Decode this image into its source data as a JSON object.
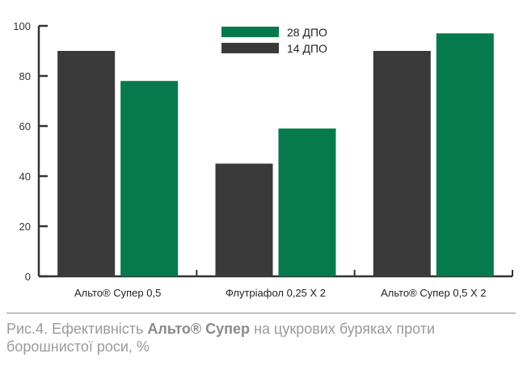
{
  "chart_data": {
    "type": "bar",
    "categories": [
      "Альто® Супер 0,5",
      "Флутріафол 0,25 Х 2",
      "Альто® Супер 0,5 Х 2"
    ],
    "series": [
      {
        "name": "14 ДПО",
        "values": [
          90,
          45,
          90
        ],
        "color": "#3a3a3a"
      },
      {
        "name": "28 ДПО",
        "values": [
          78,
          59,
          97
        ],
        "color": "#067a4c"
      }
    ],
    "legend_order": [
      "28 ДПО",
      "14 ДПО"
    ],
    "legend_position": "top-center",
    "ylim": [
      0,
      100
    ],
    "yticks": [
      0,
      20,
      40,
      60,
      80,
      100
    ],
    "xlabel": "",
    "ylabel": "",
    "title": ""
  },
  "caption": {
    "prefix": "Рис.4. Ефективність ",
    "bold": "Альто® Супер",
    "suffix": " на цукрових буряках проти борошнистої роси, %"
  }
}
